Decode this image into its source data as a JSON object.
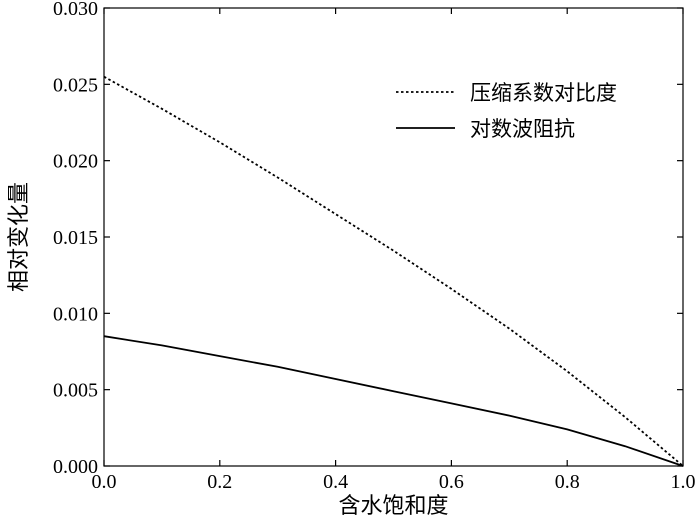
{
  "chart_data": {
    "type": "line",
    "title": "",
    "xlabel": "含水饱和度",
    "ylabel": "相对变化量",
    "xlim": [
      0,
      1
    ],
    "ylim": [
      0,
      0.03
    ],
    "x_ticks": [
      "0.0",
      "0.2",
      "0.4",
      "0.6",
      "0.8",
      "1.0"
    ],
    "y_ticks": [
      "0.000",
      "0.005",
      "0.010",
      "0.015",
      "0.020",
      "0.025",
      "0.030"
    ],
    "grid": false,
    "legend_position": "top-right",
    "series": [
      {
        "name": "压缩系数对比度",
        "line_style": "dotted",
        "color": "#000000",
        "x": [
          0.0,
          0.1,
          0.2,
          0.3,
          0.4,
          0.5,
          0.6,
          0.7,
          0.8,
          0.9,
          1.0
        ],
        "y": [
          0.0255,
          0.0234,
          0.0212,
          0.0189,
          0.0165,
          0.0141,
          0.0116,
          0.009,
          0.0062,
          0.0032,
          0.0
        ]
      },
      {
        "name": "对数波阻抗",
        "line_style": "solid",
        "color": "#000000",
        "x": [
          0.0,
          0.1,
          0.2,
          0.3,
          0.4,
          0.5,
          0.6,
          0.7,
          0.8,
          0.9,
          1.0
        ],
        "y": [
          0.0085,
          0.0079,
          0.0072,
          0.0065,
          0.0057,
          0.0049,
          0.0041,
          0.0033,
          0.0024,
          0.0013,
          0.0
        ]
      }
    ]
  }
}
